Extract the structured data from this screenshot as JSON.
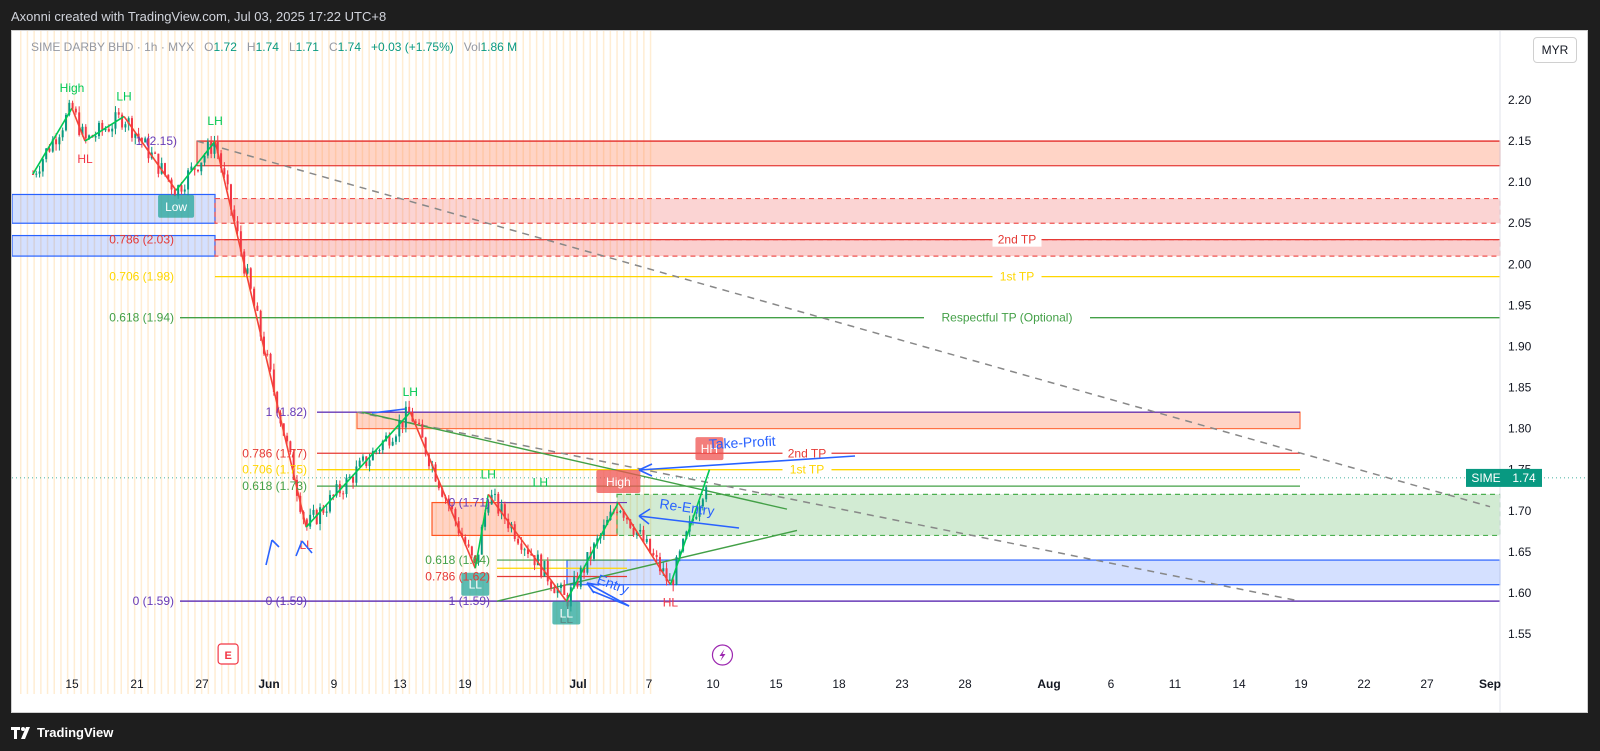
{
  "credit": "Axonni created with TradingView.com, Jul 03, 2025 17:22 UTC+8",
  "footer_logo": "TradingView",
  "legend": {
    "symbol": "SIME DARBY BHD · 1h · MYX",
    "o_label": "O",
    "o": "1.72",
    "h_label": "H",
    "h": "1.74",
    "l_label": "L",
    "l": "1.71",
    "c_label": "C",
    "c": "1.74",
    "change": "+0.03 (+1.75%)",
    "vol_label": "Vol",
    "vol": "1.86 M"
  },
  "currency": "MYR",
  "price_tag": {
    "ticker": "SIME",
    "price": "1.74"
  },
  "colors": {
    "up": "#089981",
    "down": "#f23645",
    "purple": "#673ab7",
    "yellow": "#ffd600",
    "green_line": "#43a047",
    "red_line": "#e53935",
    "blue_box": "#2962ff",
    "orange": "#ff5722"
  },
  "chart_data": {
    "type": "line",
    "title": "",
    "y_ticks": [
      "2.20",
      "2.15",
      "2.10",
      "2.05",
      "2.00",
      "1.95",
      "1.90",
      "1.85",
      "1.80",
      "1.75",
      "1.70",
      "1.65",
      "1.60",
      "1.55"
    ],
    "x_ticks": [
      "15",
      "21",
      "27",
      "Jun",
      "9",
      "13",
      "19",
      "Jul",
      "7",
      "10",
      "15",
      "18",
      "23",
      "28",
      "Aug",
      "6",
      "11",
      "14",
      "19",
      "22",
      "27",
      "Sep"
    ],
    "ylim": [
      1.52,
      2.25
    ],
    "grid": false,
    "swing_path": [
      {
        "x": "May 12",
        "y": 2.11
      },
      {
        "x": "May 15",
        "y": 2.19
      },
      {
        "x": "May 16",
        "y": 2.15
      },
      {
        "x": "May 19",
        "y": 2.18
      },
      {
        "x": "May 23",
        "y": 2.09
      },
      {
        "x": "May 26",
        "y": 2.15
      },
      {
        "x": "Jun 2",
        "y": 1.68
      },
      {
        "x": "Jun 10",
        "y": 1.82
      },
      {
        "x": "Jun 15",
        "y": 1.63
      },
      {
        "x": "Jun 16",
        "y": 1.72
      },
      {
        "x": "Jun 22",
        "y": 1.59
      },
      {
        "x": "Jun 26",
        "y": 1.71
      },
      {
        "x": "Jun 30",
        "y": 1.61
      },
      {
        "x": "Jul 3",
        "y": 1.75
      }
    ],
    "swing_labels": [
      {
        "text": "High",
        "x": "May 15",
        "y": 2.19,
        "kind": "up"
      },
      {
        "text": "LH",
        "x": "May 19",
        "y": 2.18,
        "kind": "up"
      },
      {
        "text": "LH",
        "x": "May 26",
        "y": 2.15,
        "kind": "up"
      },
      {
        "text": "HL",
        "x": "May 16",
        "y": 2.15,
        "kind": "down"
      },
      {
        "text": "LL",
        "x": "Jun 2",
        "y": 1.68,
        "kind": "down"
      },
      {
        "text": "LH",
        "x": "Jun 10",
        "y": 1.82,
        "kind": "up"
      },
      {
        "text": "LH",
        "x": "Jun 16",
        "y": 1.72,
        "kind": "up"
      },
      {
        "text": "LH",
        "x": "Jun 20",
        "y": 1.71,
        "kind": "up"
      },
      {
        "text": "LL",
        "x": "Jun 22",
        "y": 1.59,
        "kind": "down"
      },
      {
        "text": "HL",
        "x": "Jun 30",
        "y": 1.61,
        "kind": "down"
      }
    ],
    "boxed_labels": [
      {
        "text": "Low",
        "x": "May 23",
        "y": 2.07,
        "color": "#26a69a"
      },
      {
        "text": "HH",
        "x": "Jul 3",
        "y": 1.775,
        "color": "#ef5350"
      },
      {
        "text": "High",
        "x": "Jun 26",
        "y": 1.735,
        "color": "#ef5350"
      },
      {
        "text": "LL",
        "x": "Jun 15",
        "y": 1.61,
        "color": "#26a69a"
      },
      {
        "text": "LL",
        "x": "Jun 22",
        "y": 1.575,
        "color": "#26a69a"
      }
    ],
    "fib_labels": [
      {
        "text": "1 (2.15)",
        "y": 2.15,
        "color": "#673ab7"
      },
      {
        "text": "0.786 (2.03)",
        "y": 2.03,
        "color": "#e53935"
      },
      {
        "text": "0.706 (1.98)",
        "y": 1.985,
        "color": "#ffd600"
      },
      {
        "text": "0.618 (1.94)",
        "y": 1.935,
        "color": "#43a047"
      },
      {
        "text": "0 (1.59)",
        "y": 1.59,
        "color": "#673ab7"
      },
      {
        "text": "1 (1.82)",
        "y": 1.82,
        "color": "#673ab7"
      },
      {
        "text": "0.786 (1.77)",
        "y": 1.77,
        "color": "#e53935"
      },
      {
        "text": "0.706 (1.75)",
        "y": 1.75,
        "color": "#ffd600"
      },
      {
        "text": "0.618 (1.73)",
        "y": 1.73,
        "color": "#43a047"
      },
      {
        "text": "0 (1.59)",
        "y": 1.59,
        "color": "#673ab7"
      },
      {
        "text": "0 (1.71)",
        "y": 1.71,
        "color": "#673ab7"
      },
      {
        "text": "0.618 (1.64)",
        "y": 1.64,
        "color": "#43a047"
      },
      {
        "text": "0.786 (1.62)",
        "y": 1.62,
        "color": "#e53935"
      },
      {
        "text": "1 (1.59)",
        "y": 1.59,
        "color": "#673ab7"
      }
    ],
    "line_labels": [
      {
        "text": "2nd TP",
        "y": 2.03,
        "color": "#e53935"
      },
      {
        "text": "1st TP",
        "y": 1.985,
        "color": "#ffd600"
      },
      {
        "text": "Respectful TP (Optional)",
        "y": 1.935,
        "color": "#43a047"
      },
      {
        "text": "2nd TP",
        "y": 1.77,
        "color": "#e53935"
      },
      {
        "text": "1st TP",
        "y": 1.75,
        "color": "#ffd600"
      }
    ],
    "annotations": [
      {
        "text": "Take-Profit",
        "color": "#2962ff"
      },
      {
        "text": "Re-Entry",
        "color": "#2962ff"
      },
      {
        "text": "Entry",
        "color": "#2962ff"
      }
    ],
    "event_marker": "E",
    "last_price": 1.74
  }
}
